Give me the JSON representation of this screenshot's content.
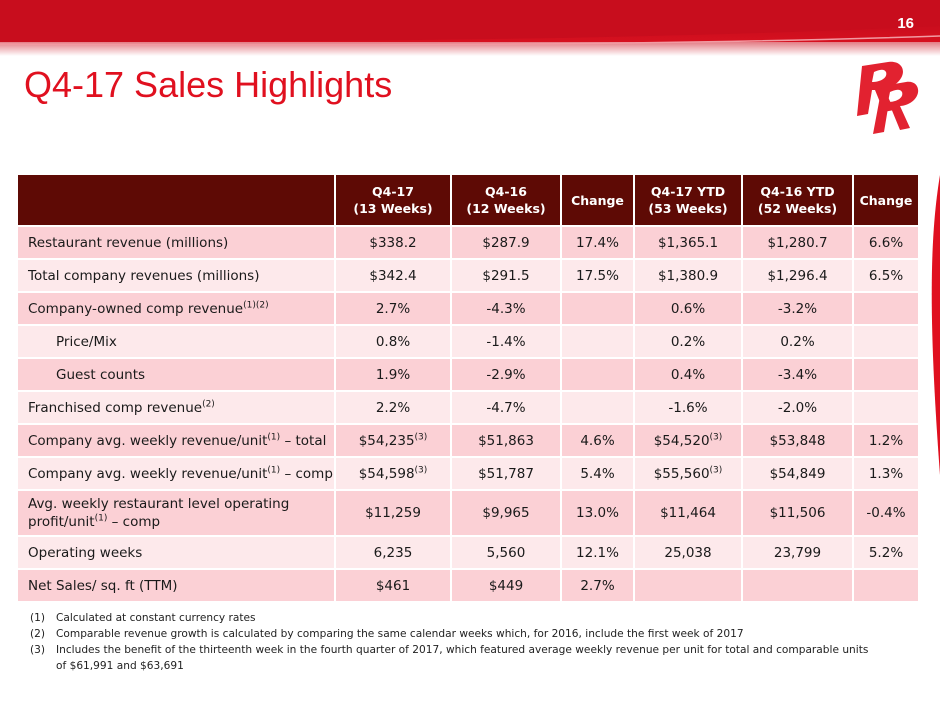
{
  "page_number": "16",
  "title": "Q4-17 Sales Highlights",
  "colors": {
    "brand_red": "#e0101f",
    "header_bg": "#5e0a05",
    "row_pink": "#fbd0d5",
    "row_light": "#fde9eb"
  },
  "logo_icon": "red-robin-rr-logo-icon",
  "table": {
    "headers": [
      {
        "line1": "",
        "line2": ""
      },
      {
        "line1": "Q4-17",
        "line2": "(13 Weeks)"
      },
      {
        "line1": "Q4-16",
        "line2": "(12 Weeks)"
      },
      {
        "line1": "Change",
        "line2": ""
      },
      {
        "line1": "Q4-17 YTD",
        "line2": "(53 Weeks)"
      },
      {
        "line1": "Q4-16 YTD",
        "line2": "(52 Weeks)"
      },
      {
        "line1": "Change",
        "line2": ""
      }
    ],
    "rows": [
      {
        "label": "Restaurant revenue (millions)",
        "label_sup": "",
        "label_suffix": "",
        "values": [
          "$338.2",
          "$287.9",
          "17.4%",
          "$1,365.1",
          "$1,280.7",
          "6.6%"
        ]
      },
      {
        "label": "Total company revenues (millions)",
        "label_sup": "",
        "label_suffix": "",
        "values": [
          "$342.4",
          "$291.5",
          "17.5%",
          "$1,380.9",
          "$1,296.4",
          "6.5%"
        ]
      },
      {
        "label": "Company-owned comp revenue",
        "label_sup": "(1)(2)",
        "label_suffix": "",
        "values": [
          "2.7%",
          "-4.3%",
          "",
          "0.6%",
          "-3.2%",
          ""
        ]
      },
      {
        "label": "Price/Mix",
        "label_sup": "",
        "label_suffix": "",
        "values": [
          "0.8%",
          "-1.4%",
          "",
          "0.2%",
          "0.2%",
          ""
        ]
      },
      {
        "label": "Guest counts",
        "label_sup": "",
        "label_suffix": "",
        "values": [
          "1.9%",
          "-2.9%",
          "",
          "0.4%",
          "-3.4%",
          ""
        ]
      },
      {
        "label": "Franchised comp revenue",
        "label_sup": "(2)",
        "label_suffix": "",
        "values": [
          "2.2%",
          "-4.7%",
          "",
          "-1.6%",
          "-2.0%",
          ""
        ]
      },
      {
        "label": "Company avg. weekly revenue/unit",
        "label_sup": "(1)",
        "label_suffix": " – total",
        "values": [
          "$54,235",
          "$51,863",
          "4.6%",
          "$54,520",
          "$53,848",
          "1.2%"
        ],
        "value_sups": [
          "(3)",
          "",
          "",
          "(3)",
          "",
          ""
        ]
      },
      {
        "label": "Company avg. weekly revenue/unit",
        "label_sup": "(1)",
        "label_suffix": " – comp",
        "values": [
          "$54,598",
          "$51,787",
          "5.4%",
          "$55,560",
          "$54,849",
          "1.3%"
        ],
        "value_sups": [
          "(3)",
          "",
          "",
          "(3)",
          "",
          ""
        ]
      },
      {
        "label_line1": "Avg. weekly restaurant level operating",
        "label": "profit/unit",
        "label_sup": "(1)",
        "label_suffix": " – comp",
        "values": [
          "$11,259",
          "$9,965",
          "13.0%",
          "$11,464",
          "$11,506",
          "-0.4%"
        ]
      },
      {
        "label": "Operating weeks",
        "label_sup": "",
        "label_suffix": "",
        "values": [
          "6,235",
          "5,560",
          "12.1%",
          "25,038",
          "23,799",
          "5.2%"
        ]
      },
      {
        "label": "Net Sales/ sq. ft (TTM)",
        "label_sup": "",
        "label_suffix": "",
        "values": [
          "$461",
          "$449",
          "2.7%",
          "",
          "",
          ""
        ]
      }
    ]
  },
  "footnotes": [
    {
      "num": "(1)",
      "text": "Calculated at constant currency rates"
    },
    {
      "num": "(2)",
      "text": "Comparable revenue growth is calculated by comparing the same calendar weeks which, for 2016, include the first week of 2017"
    },
    {
      "num": "(3)",
      "text": "Includes the benefit of the thirteenth week in the fourth quarter of 2017, which featured average weekly revenue per unit for total and comparable units",
      "text2": "of $61,991 and $63,691"
    }
  ]
}
